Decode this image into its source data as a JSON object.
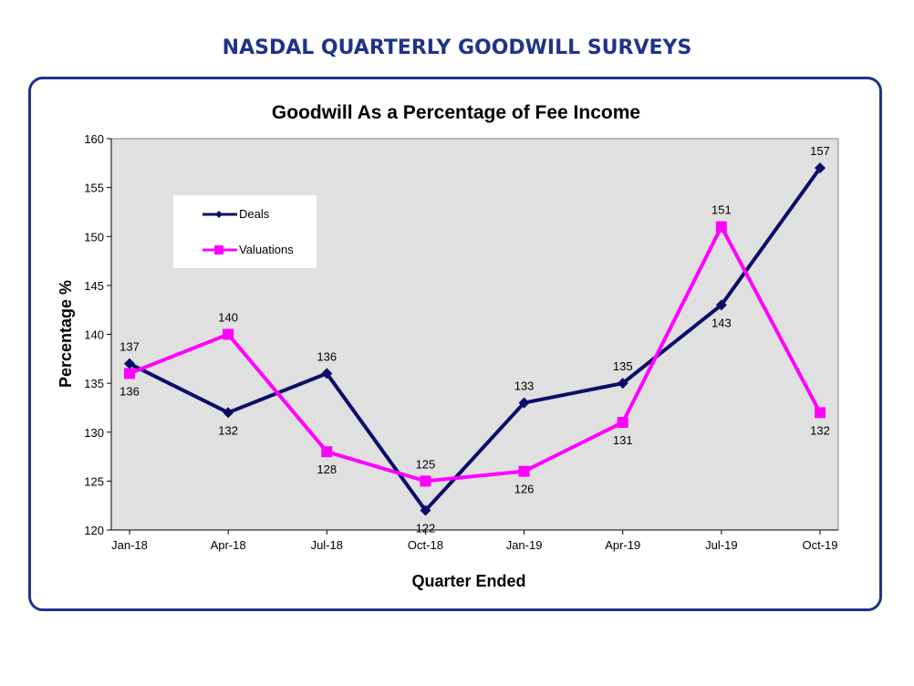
{
  "page_title": "NASDAL QUARTERLY GOODWILL SURVEYS",
  "colors": {
    "frame_border": "#1f3388",
    "plot_background": "#e0e0e0",
    "deals": "#0c0c6a",
    "valuations": "#ff00ff"
  },
  "chart_data": {
    "type": "line",
    "title": "Goodwill As a Percentage of Fee Income",
    "xlabel": "Quarter Ended",
    "ylabel": "Percentage %",
    "categories": [
      "Jan-18",
      "Apr-18",
      "Jul-18",
      "Oct-18",
      "Jan-19",
      "Apr-19",
      "Jul-19",
      "Oct-19"
    ],
    "ylim": [
      120,
      160
    ],
    "yticks": [
      120,
      125,
      130,
      135,
      140,
      145,
      150,
      155,
      160
    ],
    "grid": false,
    "legend_position": "top-left",
    "series": [
      {
        "name": "Deals",
        "values": [
          137,
          132,
          136,
          122,
          133,
          135,
          143,
          157
        ],
        "marker": "diamond",
        "color": "#0c0c6a",
        "label_positions": [
          "above",
          "below",
          "above",
          "below",
          "above",
          "above",
          "below",
          "above"
        ]
      },
      {
        "name": "Valuations",
        "values": [
          136,
          140,
          128,
          125,
          126,
          131,
          151,
          132
        ],
        "marker": "square",
        "color": "#ff00ff",
        "label_positions": [
          "below",
          "above",
          "below",
          "above",
          "below",
          "below",
          "above",
          "below"
        ]
      }
    ]
  }
}
